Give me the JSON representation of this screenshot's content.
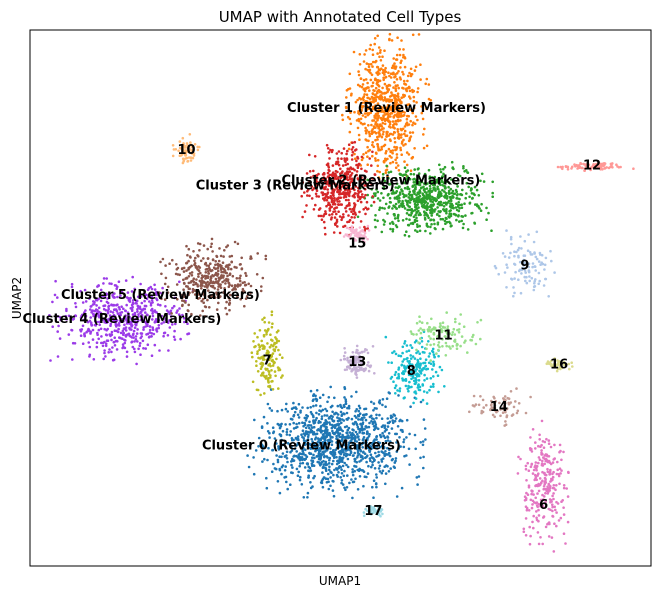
{
  "chart_data": {
    "type": "scatter",
    "title": "UMAP with Annotated Cell Types",
    "xlabel": "UMAP1",
    "ylabel": "UMAP2",
    "xlim": [
      0,
      100
    ],
    "ylim": [
      0,
      100
    ],
    "ticks": false,
    "grid": false,
    "legend": "on-data",
    "clusters": [
      {
        "id": "0",
        "label": "Cluster 0 (Review Markers)",
        "color": "#1f77b4",
        "center": [
          49.5,
          23.2
        ],
        "spread": [
          10.5,
          7.5
        ],
        "count": 1100,
        "label_pos": [
          43.7,
          22.4
        ]
      },
      {
        "id": "1",
        "label": "Cluster 1 (Review Markers)",
        "color": "#ff7f0e",
        "center": [
          57.4,
          85.4
        ],
        "spread": [
          5.2,
          10.0
        ],
        "count": 700,
        "label_pos": [
          57.4,
          85.4
        ]
      },
      {
        "id": "2",
        "label": "Cluster 2 (Review Markers)",
        "color": "#2ca02c",
        "center": [
          63.8,
          68.5
        ],
        "spread": [
          8.0,
          5.0
        ],
        "count": 650,
        "label_pos": [
          56.5,
          71.8
        ]
      },
      {
        "id": "3",
        "label": "Cluster 3 (Review Markers)",
        "color": "#d62728",
        "center": [
          50.0,
          70.4
        ],
        "spread": [
          4.5,
          6.5
        ],
        "count": 450,
        "label_pos": [
          42.7,
          70.9
        ]
      },
      {
        "id": "4",
        "label": "Cluster 4 (Review Markers)",
        "color": "#9b3be8",
        "center": [
          14.8,
          46.0
        ],
        "spread": [
          8.5,
          6.0
        ],
        "count": 550,
        "label_pos": [
          14.8,
          46.0
        ]
      },
      {
        "id": "5",
        "label": "Cluster 5 (Review Markers)",
        "color": "#8c564b",
        "center": [
          29.1,
          53.5
        ],
        "spread": [
          6.5,
          5.5
        ],
        "count": 380,
        "label_pos": [
          21.0,
          50.5
        ]
      },
      {
        "id": "6",
        "label": "6",
        "color": "#e377c2",
        "center": [
          82.7,
          15.1
        ],
        "spread": [
          3.0,
          9.0
        ],
        "count": 260,
        "label_pos": [
          82.7,
          11.3
        ]
      },
      {
        "id": "7",
        "label": "7",
        "color": "#bcbd22",
        "center": [
          38.2,
          39.4
        ],
        "spread": [
          2.2,
          6.0
        ],
        "count": 150,
        "label_pos": [
          38.2,
          38.2
        ]
      },
      {
        "id": "8",
        "label": "8",
        "color": "#17becf",
        "center": [
          62.1,
          36.8
        ],
        "spread": [
          3.5,
          5.0
        ],
        "count": 200,
        "label_pos": [
          61.4,
          36.3
        ]
      },
      {
        "id": "9",
        "label": "9",
        "color": "#aec7e8",
        "center": [
          79.7,
          56.0
        ],
        "spread": [
          3.5,
          5.0
        ],
        "count": 110,
        "label_pos": [
          79.7,
          56.0
        ]
      },
      {
        "id": "10",
        "label": "10",
        "color": "#ffbb78",
        "center": [
          25.2,
          77.5
        ],
        "spread": [
          1.8,
          2.2
        ],
        "count": 70,
        "label_pos": [
          25.2,
          77.5
        ]
      },
      {
        "id": "11",
        "label": "11",
        "color": "#98df8a",
        "center": [
          66.6,
          42.9
        ],
        "spread": [
          4.5,
          3.5
        ],
        "count": 110,
        "label_pos": [
          66.6,
          42.9
        ]
      },
      {
        "id": "12",
        "label": "12",
        "color": "#ff9896",
        "center": [
          90.5,
          74.6
        ],
        "spread": [
          5.0,
          0.7
        ],
        "count": 90,
        "label_pos": [
          90.5,
          74.6
        ]
      },
      {
        "id": "13",
        "label": "13",
        "color": "#c5b0d5",
        "center": [
          52.7,
          38.0
        ],
        "spread": [
          2.3,
          2.5
        ],
        "count": 110,
        "label_pos": [
          52.7,
          38.0
        ]
      },
      {
        "id": "14",
        "label": "14",
        "color": "#c49c94",
        "center": [
          75.5,
          29.6
        ],
        "spread": [
          4.0,
          2.5
        ],
        "count": 70,
        "label_pos": [
          75.5,
          29.6
        ]
      },
      {
        "id": "15",
        "label": "15",
        "color": "#f7b6d2",
        "center": [
          52.7,
          62.0
        ],
        "spread": [
          1.8,
          1.3
        ],
        "count": 60,
        "label_pos": [
          52.7,
          60.1
        ]
      },
      {
        "id": "16",
        "label": "16",
        "color": "#dbdb8d",
        "center": [
          85.2,
          37.5
        ],
        "spread": [
          1.8,
          0.9
        ],
        "count": 40,
        "label_pos": [
          85.2,
          37.5
        ]
      },
      {
        "id": "17",
        "label": "17",
        "color": "#9edae5",
        "center": [
          55.3,
          10.2
        ],
        "spread": [
          1.5,
          0.9
        ],
        "count": 40,
        "label_pos": [
          55.3,
          10.2
        ]
      }
    ]
  }
}
